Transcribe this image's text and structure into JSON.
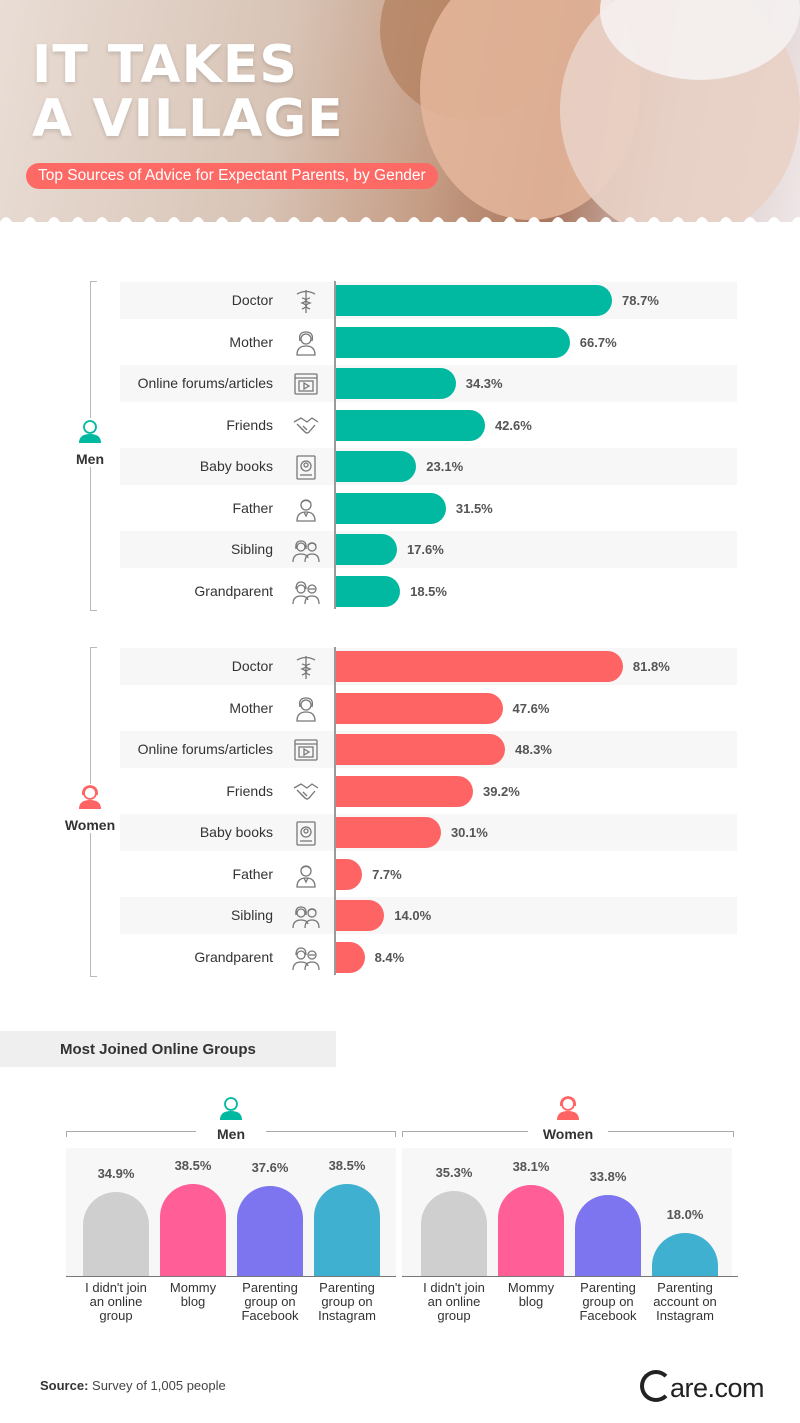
{
  "header": {
    "title_line1": "IT TAKES",
    "title_line2": "A VILLAGE",
    "subtitle": "Top Sources of Advice for Expectant Parents, by Gender"
  },
  "colors": {
    "men": "#00b9a0",
    "women": "#ff6465",
    "accent": "#fd6a65",
    "gray": "#cfcfcf",
    "pink": "#ff5f96",
    "purple": "#7d74ef",
    "blue": "#3fb0d0"
  },
  "chart_data": [
    {
      "type": "bar",
      "orientation": "horizontal",
      "group": "Men",
      "categories": [
        "Doctor",
        "Mother",
        "Online forums/articles",
        "Friends",
        "Baby books",
        "Father",
        "Sibling",
        "Grandparent"
      ],
      "icons": [
        "caduceus-icon",
        "mother-icon",
        "web-video-icon",
        "handshake-icon",
        "baby-book-icon",
        "father-icon",
        "siblings-icon",
        "grandparents-icon"
      ],
      "values": [
        78.7,
        66.7,
        34.3,
        42.6,
        23.1,
        31.5,
        17.6,
        18.5
      ],
      "labels": [
        "78.7%",
        "66.7%",
        "34.3%",
        "42.6%",
        "23.1%",
        "31.5%",
        "17.6%",
        "18.5%"
      ]
    },
    {
      "type": "bar",
      "orientation": "horizontal",
      "group": "Women",
      "categories": [
        "Doctor",
        "Mother",
        "Online forums/articles",
        "Friends",
        "Baby books",
        "Father",
        "Sibling",
        "Grandparent"
      ],
      "icons": [
        "caduceus-icon",
        "mother-icon",
        "web-video-icon",
        "handshake-icon",
        "baby-book-icon",
        "father-icon",
        "siblings-icon",
        "grandparents-icon"
      ],
      "values": [
        81.8,
        47.6,
        48.3,
        39.2,
        30.1,
        7.7,
        14.0,
        8.4
      ],
      "labels": [
        "81.8%",
        "47.6%",
        "48.3%",
        "39.2%",
        "30.1%",
        "7.7%",
        "14.0%",
        "8.4%"
      ]
    },
    {
      "type": "bar",
      "title": "Most Joined Online Groups",
      "group": "Men",
      "categories": [
        "I didn't join an online group",
        "Mommy blog",
        "Parenting group on Facebook",
        "Parenting group on Instagram"
      ],
      "values": [
        34.9,
        38.5,
        37.6,
        38.5
      ],
      "labels": [
        "34.9%",
        "38.5%",
        "37.6%",
        "38.5%"
      ]
    },
    {
      "type": "bar",
      "title": "Most Joined Online Groups",
      "group": "Women",
      "categories": [
        "I didn't join an online group",
        "Mommy blog",
        "Parenting group on Facebook",
        "Parenting account on Instagram"
      ],
      "values": [
        35.3,
        38.1,
        33.8,
        18.0
      ],
      "labels": [
        "35.3%",
        "38.1%",
        "33.8%",
        "18.0%"
      ]
    }
  ],
  "labels": {
    "men": "Men",
    "women": "Women",
    "groups_title": "Most Joined Online Groups",
    "men_cats": [
      "I didn't join\nan online\ngroup",
      "Mommy\nblog",
      "Parenting\ngroup on\nFacebook",
      "Parenting\ngroup on\nInstagram"
    ],
    "women_cats": [
      "I didn't join\nan online\ngroup",
      "Mommy\nblog",
      "Parenting\ngroup on\nFacebook",
      "Parenting\naccount on\nInstagram"
    ]
  },
  "footer": {
    "source_label": "Source:",
    "source_text": "Survey of 1,005 people",
    "brand": "are.com"
  }
}
